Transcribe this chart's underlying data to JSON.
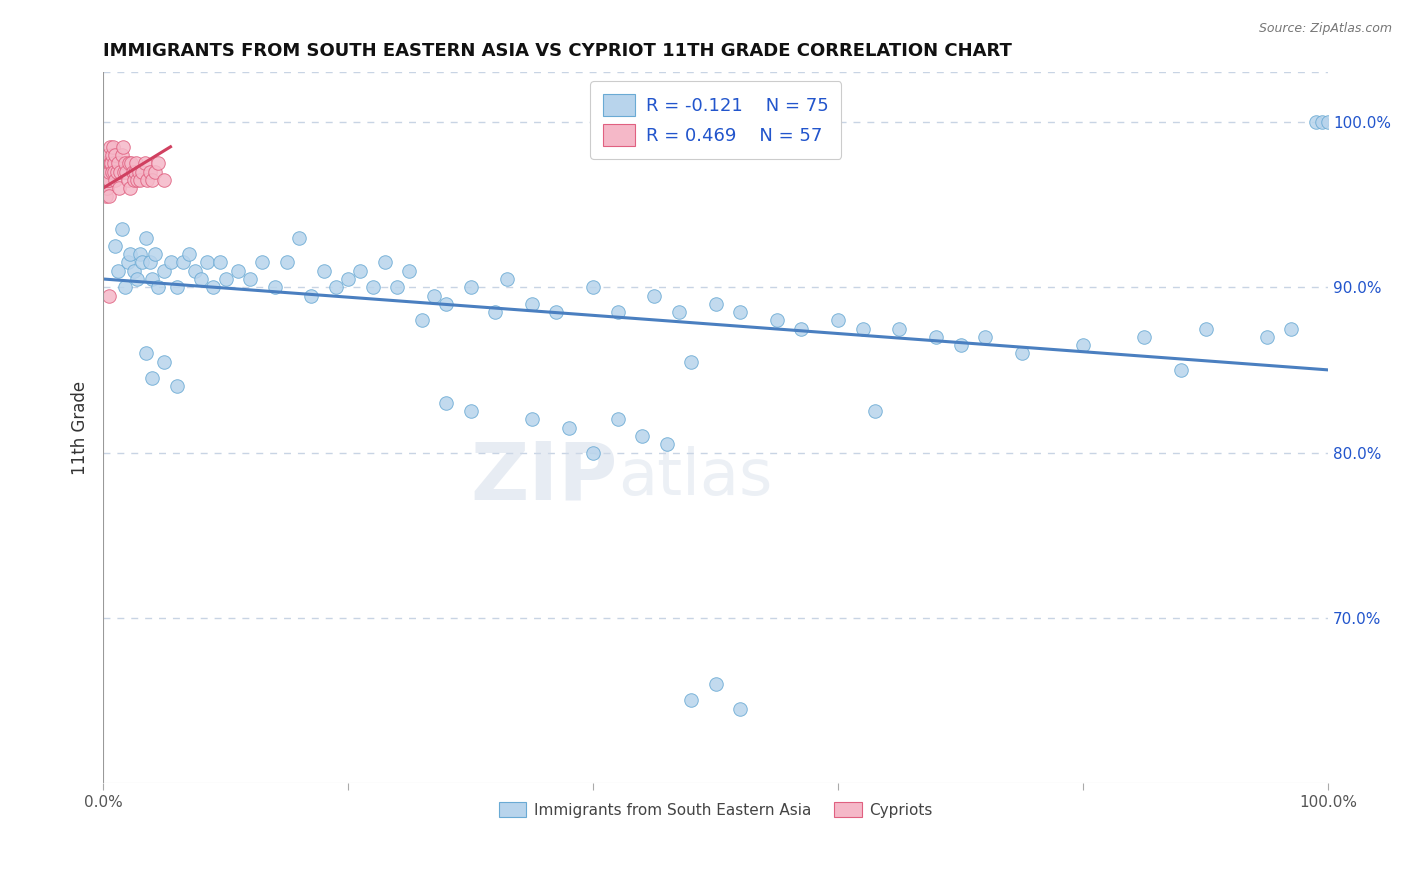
{
  "title": "IMMIGRANTS FROM SOUTH EASTERN ASIA VS CYPRIOT 11TH GRADE CORRELATION CHART",
  "source": "Source: ZipAtlas.com",
  "ylabel": "11th Grade",
  "xlim": [
    0,
    100
  ],
  "ylim": [
    60,
    103
  ],
  "blue_label": "Immigrants from South Eastern Asia",
  "pink_label": "Cypriots",
  "blue_R": -0.121,
  "blue_N": 75,
  "pink_R": 0.469,
  "pink_N": 57,
  "blue_color": "#b8d4ec",
  "pink_color": "#f5b8c8",
  "blue_edge_color": "#6aaad4",
  "pink_edge_color": "#e06080",
  "blue_line_color": "#4a7fc0",
  "pink_line_color": "#d04060",
  "legend_text_color": "#2255cc",
  "right_axis_color": "#2255cc",
  "watermark_color": "#d0dae8",
  "background_color": "#ffffff",
  "grid_color": "#c8d4e4",
  "blue_trend_x0": 0.0,
  "blue_trend_x1": 100.0,
  "blue_trend_y0": 90.5,
  "blue_trend_y1": 85.0,
  "blue_x": [
    1.0,
    1.2,
    1.5,
    1.8,
    2.0,
    2.2,
    2.5,
    2.8,
    3.0,
    3.2,
    3.5,
    3.8,
    4.0,
    4.2,
    4.5,
    5.0,
    5.5,
    6.0,
    6.5,
    7.0,
    7.5,
    8.0,
    8.5,
    9.0,
    9.5,
    10.0,
    11.0,
    12.0,
    13.0,
    14.0,
    15.0,
    16.0,
    17.0,
    18.0,
    19.0,
    20.0,
    21.0,
    22.0,
    23.0,
    24.0,
    25.0,
    26.0,
    27.0,
    28.0,
    30.0,
    32.0,
    33.0,
    35.0,
    37.0,
    40.0,
    42.0,
    45.0,
    47.0,
    48.0,
    50.0,
    52.0,
    55.0,
    57.0,
    60.0,
    62.0,
    63.0,
    65.0,
    68.0,
    70.0,
    72.0,
    75.0,
    80.0,
    85.0,
    88.0,
    90.0,
    95.0,
    97.0,
    99.0,
    99.5,
    100.0
  ],
  "blue_y": [
    92.5,
    91.0,
    93.5,
    90.0,
    91.5,
    92.0,
    91.0,
    90.5,
    92.0,
    91.5,
    93.0,
    91.5,
    90.5,
    92.0,
    90.0,
    91.0,
    91.5,
    90.0,
    91.5,
    92.0,
    91.0,
    90.5,
    91.5,
    90.0,
    91.5,
    90.5,
    91.0,
    90.5,
    91.5,
    90.0,
    91.5,
    93.0,
    89.5,
    91.0,
    90.0,
    90.5,
    91.0,
    90.0,
    91.5,
    90.0,
    91.0,
    88.0,
    89.5,
    89.0,
    90.0,
    88.5,
    90.5,
    89.0,
    88.5,
    90.0,
    88.5,
    89.5,
    88.5,
    85.5,
    89.0,
    88.5,
    88.0,
    87.5,
    88.0,
    87.5,
    82.5,
    87.5,
    87.0,
    86.5,
    87.0,
    86.0,
    86.5,
    87.0,
    85.0,
    87.5,
    87.0,
    87.5,
    100.0,
    100.0,
    100.0
  ],
  "blue_extra_x": [
    3.5,
    4.0,
    5.0,
    6.0,
    28.0,
    30.0,
    35.0,
    38.0,
    40.0,
    42.0,
    44.0,
    46.0,
    48.0,
    50.0,
    52.0
  ],
  "blue_extra_y": [
    86.0,
    84.5,
    85.5,
    84.0,
    83.0,
    82.5,
    82.0,
    81.5,
    80.0,
    82.0,
    81.0,
    80.5,
    65.0,
    66.0,
    64.5
  ],
  "pink_x": [
    0.05,
    0.08,
    0.1,
    0.12,
    0.15,
    0.18,
    0.2,
    0.22,
    0.25,
    0.28,
    0.3,
    0.32,
    0.35,
    0.38,
    0.4,
    0.42,
    0.45,
    0.48,
    0.5,
    0.55,
    0.6,
    0.65,
    0.7,
    0.75,
    0.8,
    0.85,
    0.9,
    0.95,
    1.0,
    1.1,
    1.2,
    1.3,
    1.4,
    1.5,
    1.6,
    1.7,
    1.8,
    1.9,
    2.0,
    2.1,
    2.2,
    2.3,
    2.4,
    2.5,
    2.6,
    2.7,
    2.8,
    2.9,
    3.0,
    3.2,
    3.4,
    3.6,
    3.8,
    4.0,
    4.2,
    4.5,
    5.0
  ],
  "pink_y": [
    97.5,
    97.0,
    96.5,
    96.0,
    96.5,
    97.0,
    96.0,
    95.5,
    97.0,
    97.5,
    96.0,
    97.0,
    96.5,
    97.5,
    98.0,
    96.5,
    95.5,
    96.5,
    97.0,
    97.5,
    98.5,
    97.5,
    97.0,
    98.0,
    98.5,
    97.5,
    97.0,
    98.0,
    96.5,
    97.0,
    97.5,
    96.0,
    97.0,
    98.0,
    98.5,
    97.0,
    97.5,
    97.0,
    96.5,
    97.5,
    96.0,
    97.5,
    97.0,
    96.5,
    97.0,
    97.5,
    96.5,
    97.0,
    96.5,
    97.0,
    97.5,
    96.5,
    97.0,
    96.5,
    97.0,
    97.5,
    96.5
  ],
  "pink_outlier_x": [
    0.5
  ],
  "pink_outlier_y": [
    89.5
  ],
  "pink_trend_x": [
    0.0,
    5.5
  ],
  "pink_trend_y": [
    96.0,
    98.5
  ],
  "right_yticks": [
    70.0,
    80.0,
    90.0,
    100.0
  ],
  "figsize": [
    14.06,
    8.92
  ],
  "dpi": 100
}
